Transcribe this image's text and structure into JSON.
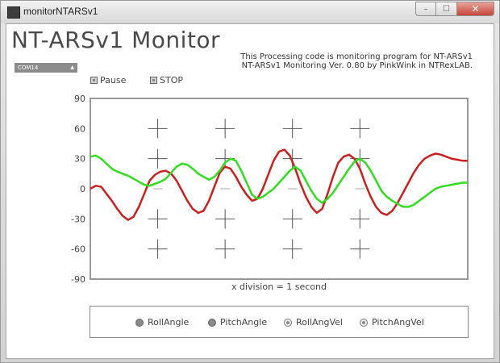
{
  "window": {
    "title": "monitorNTARSv1",
    "min_label": "–",
    "max_label": "☐",
    "close_label": "✕"
  },
  "app": {
    "title": "NT-ARSv1 Monitor",
    "desc_line1": "This Processing code is monitoring program for NT-ARSv1",
    "desc_line2": "NT-ARSv1 Monitoring Ver. 0.80 by PinkWink in NTRexLAB."
  },
  "controls": {
    "port": "COM14",
    "pause_label": "Pause",
    "stop_label": "STOP"
  },
  "legend": {
    "items": [
      {
        "label": "RollAngle",
        "style": "filled"
      },
      {
        "label": "PitchAngle",
        "style": "filled"
      },
      {
        "label": "RollAngVel",
        "style": "hollow"
      },
      {
        "label": "PitchAngVel",
        "style": "hollow"
      }
    ]
  },
  "colors": {
    "roll": "#cc2020",
    "pitch": "#33dd22",
    "frame": "#999999",
    "cross": "#555555"
  },
  "chart_data": {
    "type": "line",
    "xlabel": "x division = 1 second",
    "ylim": [
      -90,
      90
    ],
    "yticks": [
      90,
      60,
      30,
      0,
      -30,
      -60,
      -90
    ],
    "xlim": [
      0,
      7
    ],
    "series": [
      {
        "name": "RollAngle",
        "color": "#cc2020",
        "x": [
          0,
          0.1,
          0.2,
          0.3,
          0.4,
          0.5,
          0.6,
          0.7,
          0.8,
          0.9,
          1.0,
          1.1,
          1.2,
          1.3,
          1.4,
          1.5,
          1.6,
          1.7,
          1.8,
          1.9,
          2.0,
          2.1,
          2.2,
          2.3,
          2.4,
          2.5,
          2.6,
          2.7,
          2.8,
          2.9,
          3.0,
          3.1,
          3.2,
          3.3,
          3.4,
          3.5,
          3.6,
          3.7,
          3.8,
          3.9,
          4.0,
          4.1,
          4.2,
          4.3,
          4.4,
          4.5,
          4.6,
          4.7,
          4.8,
          4.9,
          5.0,
          5.1,
          5.2,
          5.3,
          5.4,
          5.5,
          5.6,
          5.7,
          5.8,
          5.9,
          6.0,
          6.1,
          6.2,
          6.3,
          6.4,
          6.5,
          6.6,
          6.7,
          6.8,
          6.9,
          7.0
        ],
        "y": [
          0,
          3,
          2,
          -5,
          -12,
          -20,
          -27,
          -31,
          -28,
          -18,
          -5,
          8,
          14,
          17,
          18,
          15,
          8,
          -2,
          -12,
          -20,
          -24,
          -22,
          -12,
          2,
          16,
          22,
          20,
          12,
          2,
          -6,
          -12,
          -10,
          0,
          14,
          28,
          37,
          39,
          33,
          20,
          5,
          -8,
          -18,
          -24,
          -20,
          -5,
          12,
          26,
          32,
          34,
          30,
          20,
          5,
          -8,
          -18,
          -24,
          -26,
          -22,
          -14,
          -4,
          6,
          16,
          24,
          30,
          33,
          35,
          34,
          32,
          30,
          29,
          28,
          28
        ]
      },
      {
        "name": "PitchAngle",
        "color": "#33dd22",
        "x": [
          0,
          0.1,
          0.2,
          0.3,
          0.4,
          0.5,
          0.6,
          0.7,
          0.8,
          0.9,
          1.0,
          1.1,
          1.2,
          1.3,
          1.4,
          1.5,
          1.6,
          1.7,
          1.8,
          1.9,
          2.0,
          2.1,
          2.2,
          2.3,
          2.4,
          2.5,
          2.6,
          2.7,
          2.8,
          2.9,
          3.0,
          3.1,
          3.2,
          3.3,
          3.4,
          3.5,
          3.6,
          3.7,
          3.8,
          3.9,
          4.0,
          4.1,
          4.2,
          4.3,
          4.4,
          4.5,
          4.6,
          4.7,
          4.8,
          4.9,
          5.0,
          5.1,
          5.2,
          5.3,
          5.4,
          5.5,
          5.6,
          5.7,
          5.8,
          5.9,
          6.0,
          6.1,
          6.2,
          6.3,
          6.4,
          6.5,
          6.6,
          6.7,
          6.8,
          6.9,
          7.0
        ],
        "y": [
          32,
          33,
          30,
          25,
          20,
          17,
          15,
          13,
          10,
          7,
          4,
          3,
          5,
          7,
          10,
          16,
          22,
          25,
          24,
          20,
          15,
          12,
          9,
          12,
          18,
          26,
          30,
          28,
          18,
          6,
          -6,
          -10,
          -8,
          -4,
          0,
          6,
          12,
          18,
          22,
          18,
          8,
          -2,
          -10,
          -14,
          -10,
          -4,
          4,
          12,
          20,
          27,
          30,
          26,
          18,
          8,
          -2,
          -8,
          -12,
          -15,
          -18,
          -18,
          -16,
          -12,
          -8,
          -4,
          0,
          2,
          3,
          4,
          5,
          6,
          6
        ]
      }
    ]
  }
}
